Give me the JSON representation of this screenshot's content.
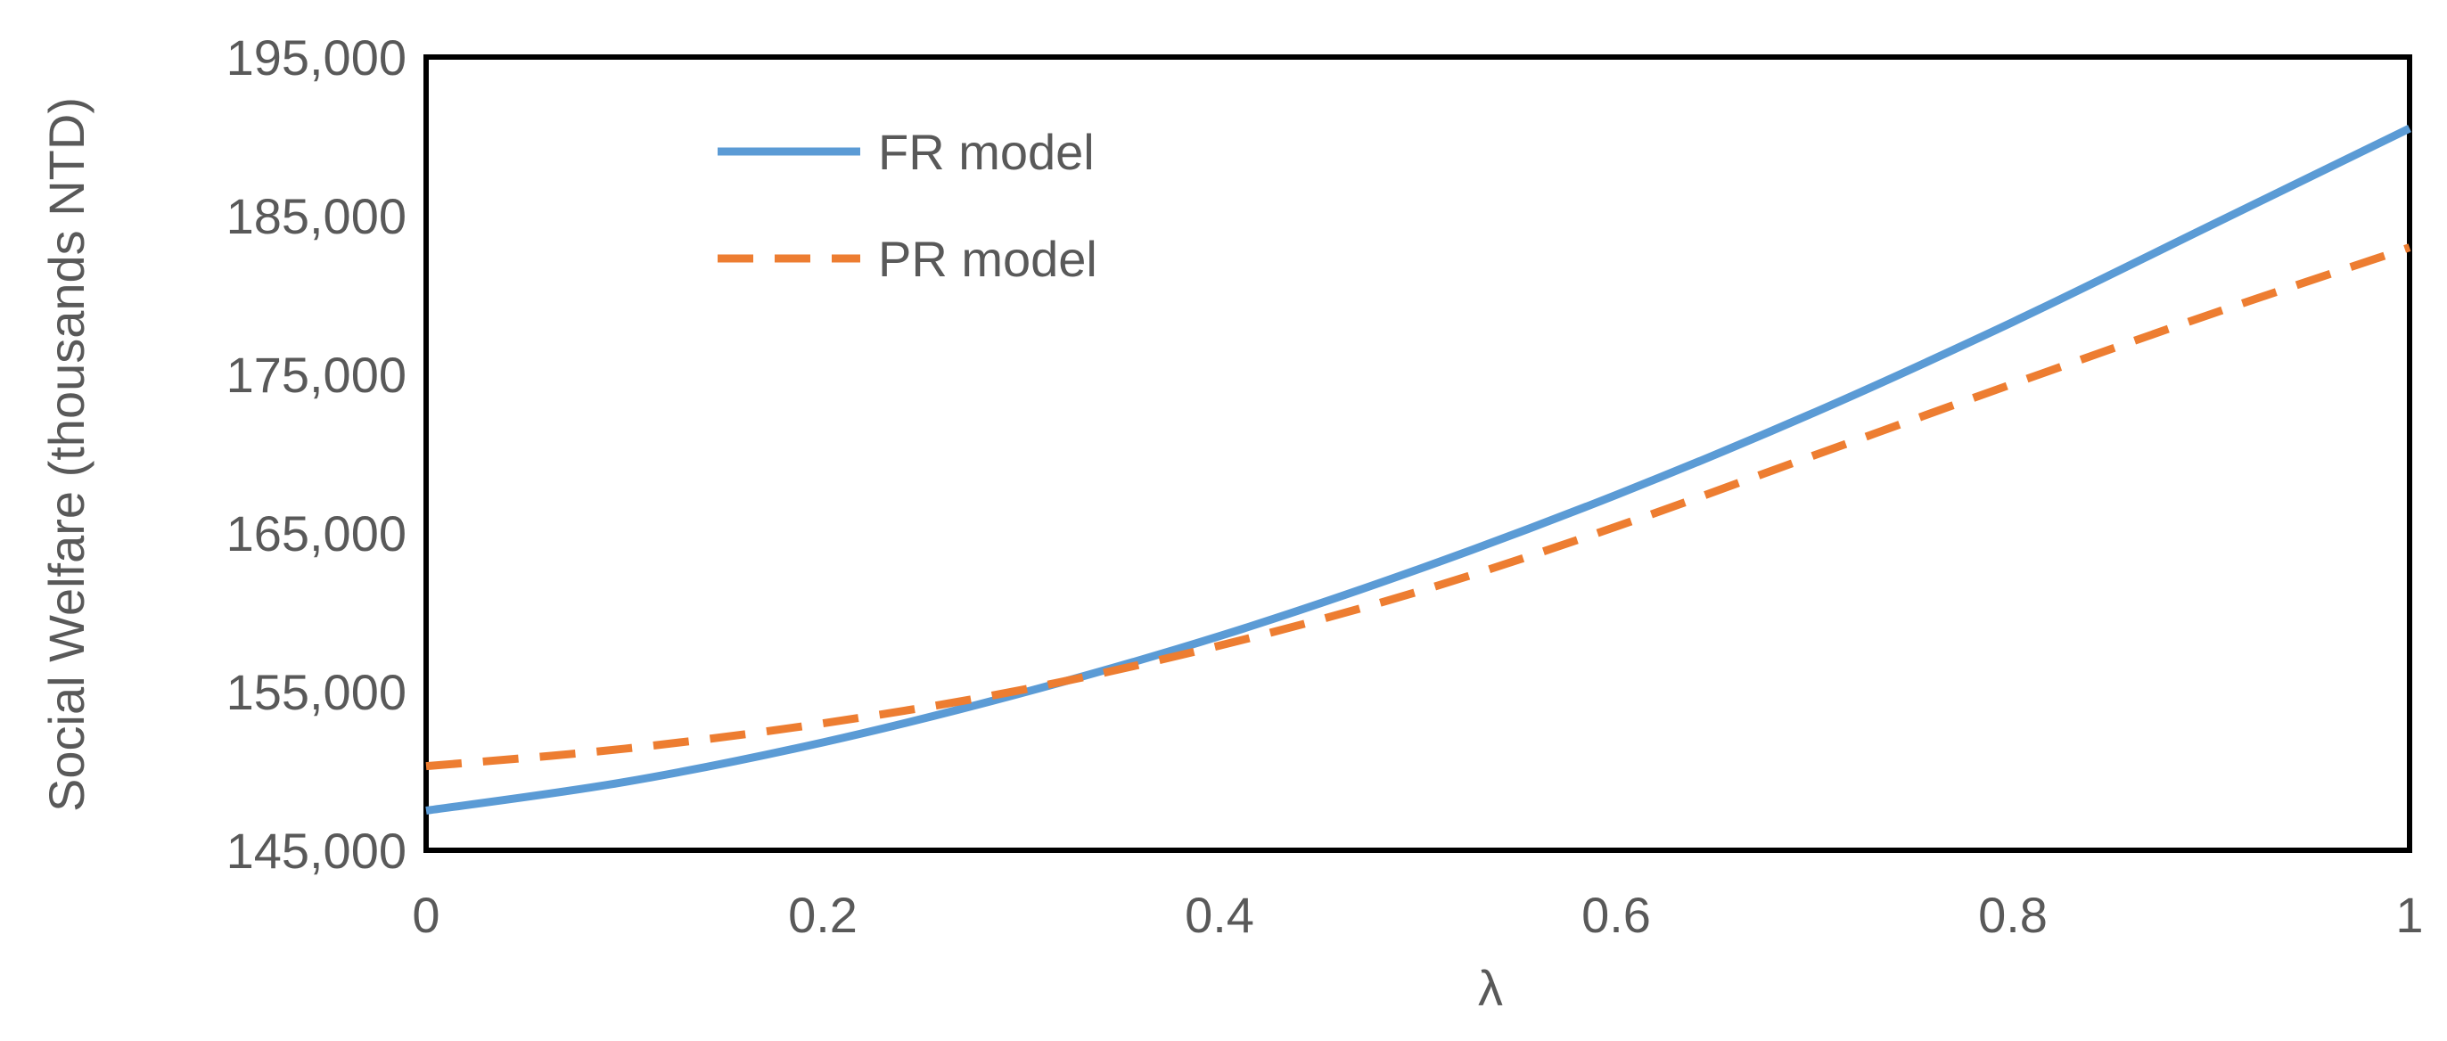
{
  "chart_data": {
    "type": "line",
    "title": "",
    "xlabel": "λ",
    "ylabel": "Social Welfare (thousands NTD)",
    "xlim": [
      0,
      1
    ],
    "ylim": [
      145000,
      195000
    ],
    "x_ticks": [
      0,
      0.2,
      0.4,
      0.6,
      0.8,
      1
    ],
    "x_tick_labels": [
      "0",
      "0.2",
      "0.4",
      "0.6",
      "0.8",
      "1"
    ],
    "y_ticks": [
      145000,
      155000,
      165000,
      175000,
      185000,
      195000
    ],
    "y_tick_labels": [
      "145,000",
      "155,000",
      "165,000",
      "175,000",
      "185,000",
      "195,000"
    ],
    "grid": false,
    "legend_position": "top-left",
    "x": [
      0,
      0.1,
      0.2,
      0.3,
      0.4,
      0.5,
      0.6,
      0.7,
      0.8,
      0.9,
      1
    ],
    "series": [
      {
        "name": "FR model",
        "style": "solid",
        "color": "#5B9BD5",
        "values": [
          147500,
          149300,
          151800,
          154900,
          158500,
          162700,
          167400,
          172600,
          178300,
          184400,
          190500
        ]
      },
      {
        "name": "PR model",
        "style": "dashed",
        "color": "#ED7D31",
        "values": [
          150300,
          151400,
          153000,
          155100,
          157900,
          161300,
          165400,
          169900,
          174400,
          178800,
          183000
        ]
      }
    ]
  }
}
